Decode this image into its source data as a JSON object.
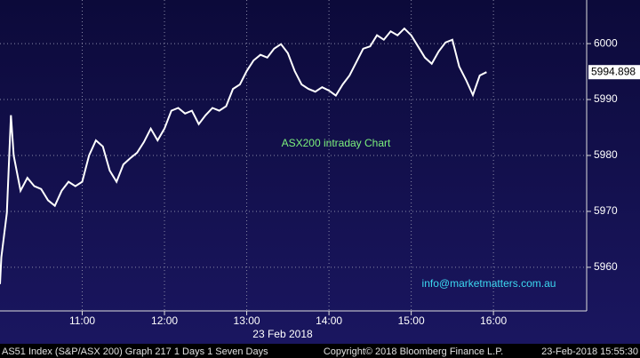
{
  "chart_data": {
    "type": "line",
    "annotations": [
      "ASX200 intraday Chart",
      "info@marketmatters.com.au"
    ],
    "x_label": "23 Feb 2018",
    "footer": [
      "AS51 Index (S&P/ASX 200) Graph 217 1 Days 1 Seven Days",
      "Copyright© 2018 Bloomberg Finance L.P.",
      "23-Feb-2018 15:55:30"
    ],
    "x": [
      "10:00",
      "10:01",
      "10:05",
      "10:08",
      "10:10",
      "10:15",
      "10:20",
      "10:25",
      "10:30",
      "10:35",
      "10:40",
      "10:45",
      "10:50",
      "10:55",
      "11:00",
      "11:05",
      "11:10",
      "11:15",
      "11:20",
      "11:25",
      "11:30",
      "11:35",
      "11:40",
      "11:45",
      "11:50",
      "11:55",
      "12:00",
      "12:05",
      "12:10",
      "12:15",
      "12:20",
      "12:25",
      "12:30",
      "12:35",
      "12:40",
      "12:45",
      "12:50",
      "12:55",
      "13:00",
      "13:05",
      "13:10",
      "13:15",
      "13:20",
      "13:25",
      "13:30",
      "13:35",
      "13:40",
      "13:45",
      "13:50",
      "13:55",
      "14:00",
      "14:05",
      "14:10",
      "14:15",
      "14:20",
      "14:25",
      "14:30",
      "14:35",
      "14:40",
      "14:45",
      "14:50",
      "14:55",
      "15:00",
      "15:05",
      "15:10",
      "15:15",
      "15:20",
      "15:25",
      "15:30",
      "15:35",
      "15:40",
      "15:45",
      "15:50",
      "15:55"
    ],
    "series": [
      {
        "name": "AS51 Index",
        "color": "#ffffff",
        "values": [
          5957,
          5961.8,
          5969.7,
          5987.2,
          5980,
          5973.7,
          5976,
          5974.5,
          5974,
          5972,
          5971,
          5973.7,
          5975.3,
          5974.5,
          5975.3,
          5980,
          5982.7,
          5981.6,
          5977.3,
          5975.3,
          5978.4,
          5979.5,
          5980.5,
          5982.4,
          5984.8,
          5982.7,
          5984.8,
          5988,
          5988.5,
          5987.5,
          5988,
          5985.6,
          5987.2,
          5988.5,
          5988,
          5988.8,
          5991.9,
          5992.7,
          5995.1,
          5997,
          5998,
          5997.5,
          5999.1,
          5999.9,
          5998.3,
          5995.1,
          5992.7,
          5991.9,
          5991.4,
          5992.2,
          5991.6,
          5990.7,
          5992.7,
          5994.3,
          5996.7,
          5999.1,
          5999.5,
          6001.5,
          6000.7,
          6002.2,
          6001.5,
          6002.7,
          6001.5,
          5999.5,
          5997.5,
          5996.4,
          5998.6,
          6000.2,
          6000.7,
          5995.9,
          5993.5,
          5990.8,
          5994.3,
          5994.898
        ]
      }
    ],
    "xlim": [
      "10:00",
      "17:08"
    ],
    "xticks": [
      "11:00",
      "12:00",
      "13:00",
      "14:00",
      "15:00",
      "16:00"
    ],
    "ylim": [
      5952.2,
      6007.8
    ],
    "yticks": [
      5960,
      5970,
      5980,
      5990,
      6000
    ],
    "grid": true
  }
}
